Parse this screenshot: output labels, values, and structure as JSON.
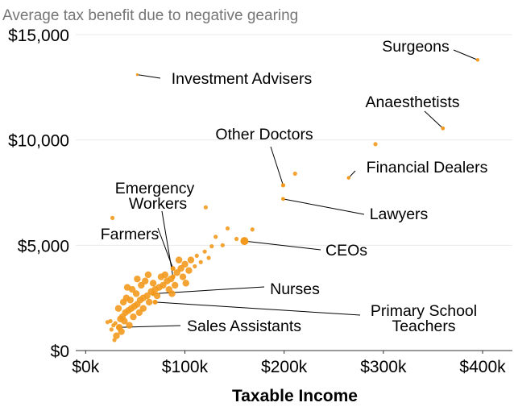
{
  "chart_data": {
    "type": "scatter",
    "title": "Average tax benefit due to negative gearing",
    "xlabel": "Taxable Income",
    "ylabel": "",
    "xlim": [
      -10000,
      430000
    ],
    "ylim": [
      0,
      15000
    ],
    "x_ticks": [
      0,
      100000,
      200000,
      300000,
      400000
    ],
    "x_tick_labels": [
      "$0k",
      "$100k",
      "$200k",
      "$300k",
      "$400k"
    ],
    "y_ticks": [
      0,
      5000,
      10000,
      15000
    ],
    "y_tick_labels": [
      "$0",
      "$5,000",
      "$10,000",
      "$15,000"
    ],
    "grid": true,
    "color": "#f39a1e",
    "labelled_points": [
      {
        "label": "Surgeons",
        "x": 395000,
        "y": 13800
      },
      {
        "label": "Investment Advisers",
        "x": 52000,
        "y": 13100
      },
      {
        "label": "Anaesthetists",
        "x": 360000,
        "y": 10550
      },
      {
        "label": "Other Doctors",
        "x": 199000,
        "y": 7850
      },
      {
        "label": "Financial Dealers",
        "x": 265000,
        "y": 8200
      },
      {
        "label": "Lawyers",
        "x": 199000,
        "y": 7200
      },
      {
        "label": "CEOs",
        "x": 160000,
        "y": 5200
      },
      {
        "label": "Farmers",
        "x": 88000,
        "y": 3900
      },
      {
        "label": "Emergency Workers",
        "x": 88000,
        "y": 3500
      },
      {
        "label": "Nurses",
        "x": 68000,
        "y": 2700
      },
      {
        "label": "Primary School Teachers",
        "x": 70000,
        "y": 2300
      },
      {
        "label": "Sales Assistants",
        "x": 33000,
        "y": 1100
      }
    ],
    "other_points": [
      {
        "x": 292000,
        "y": 9800
      },
      {
        "x": 211000,
        "y": 8400
      },
      {
        "x": 121000,
        "y": 6800
      },
      {
        "x": 27000,
        "y": 6300
      },
      {
        "x": 168000,
        "y": 5750
      },
      {
        "x": 143000,
        "y": 5800
      },
      {
        "x": 131000,
        "y": 5400
      },
      {
        "x": 152000,
        "y": 5300
      },
      {
        "x": 138000,
        "y": 5000
      },
      {
        "x": 127000,
        "y": 4950
      },
      {
        "x": 120000,
        "y": 4700
      },
      {
        "x": 112000,
        "y": 4500
      },
      {
        "x": 106000,
        "y": 4300
      },
      {
        "x": 100000,
        "y": 4100
      },
      {
        "x": 96000,
        "y": 3900
      },
      {
        "x": 92000,
        "y": 3700
      },
      {
        "x": 86000,
        "y": 3400
      },
      {
        "x": 82000,
        "y": 3300
      },
      {
        "x": 78000,
        "y": 3100
      },
      {
        "x": 74000,
        "y": 3000
      },
      {
        "x": 70000,
        "y": 2900
      },
      {
        "x": 66000,
        "y": 2800
      },
      {
        "x": 62000,
        "y": 2600
      },
      {
        "x": 58000,
        "y": 2500
      },
      {
        "x": 55000,
        "y": 2400
      },
      {
        "x": 52000,
        "y": 2200
      },
      {
        "x": 49000,
        "y": 2100
      },
      {
        "x": 46000,
        "y": 2000
      },
      {
        "x": 43000,
        "y": 1900
      },
      {
        "x": 40000,
        "y": 1800
      },
      {
        "x": 37000,
        "y": 1600
      },
      {
        "x": 35000,
        "y": 1500
      },
      {
        "x": 30000,
        "y": 1300
      },
      {
        "x": 28000,
        "y": 1200
      },
      {
        "x": 25000,
        "y": 1400
      },
      {
        "x": 22000,
        "y": 1350
      },
      {
        "x": 36000,
        "y": 900
      },
      {
        "x": 31000,
        "y": 700
      },
      {
        "x": 29000,
        "y": 500
      },
      {
        "x": 44000,
        "y": 1200
      },
      {
        "x": 48000,
        "y": 1600
      },
      {
        "x": 56000,
        "y": 3100
      },
      {
        "x": 52000,
        "y": 3400
      },
      {
        "x": 47000,
        "y": 2900
      },
      {
        "x": 41000,
        "y": 2500
      },
      {
        "x": 60000,
        "y": 3300
      },
      {
        "x": 64000,
        "y": 2300
      },
      {
        "x": 38000,
        "y": 2300
      },
      {
        "x": 33000,
        "y": 2000
      },
      {
        "x": 42000,
        "y": 3000
      },
      {
        "x": 72000,
        "y": 2600
      },
      {
        "x": 84000,
        "y": 2900
      },
      {
        "x": 90000,
        "y": 3100
      },
      {
        "x": 98000,
        "y": 3500
      },
      {
        "x": 104000,
        "y": 3800
      },
      {
        "x": 110000,
        "y": 4000
      },
      {
        "x": 116000,
        "y": 4200
      },
      {
        "x": 124000,
        "y": 4400
      },
      {
        "x": 80000,
        "y": 3600
      },
      {
        "x": 76000,
        "y": 3500
      },
      {
        "x": 68000,
        "y": 3200
      },
      {
        "x": 58000,
        "y": 2000
      },
      {
        "x": 54000,
        "y": 1800
      },
      {
        "x": 26000,
        "y": 1000
      },
      {
        "x": 34000,
        "y": 1100
      },
      {
        "x": 39000,
        "y": 1400
      },
      {
        "x": 51000,
        "y": 2700
      },
      {
        "x": 45000,
        "y": 2400
      },
      {
        "x": 63000,
        "y": 3600
      },
      {
        "x": 94000,
        "y": 4300
      },
      {
        "x": 101000,
        "y": 3200
      },
      {
        "x": 87000,
        "y": 2700
      }
    ]
  }
}
